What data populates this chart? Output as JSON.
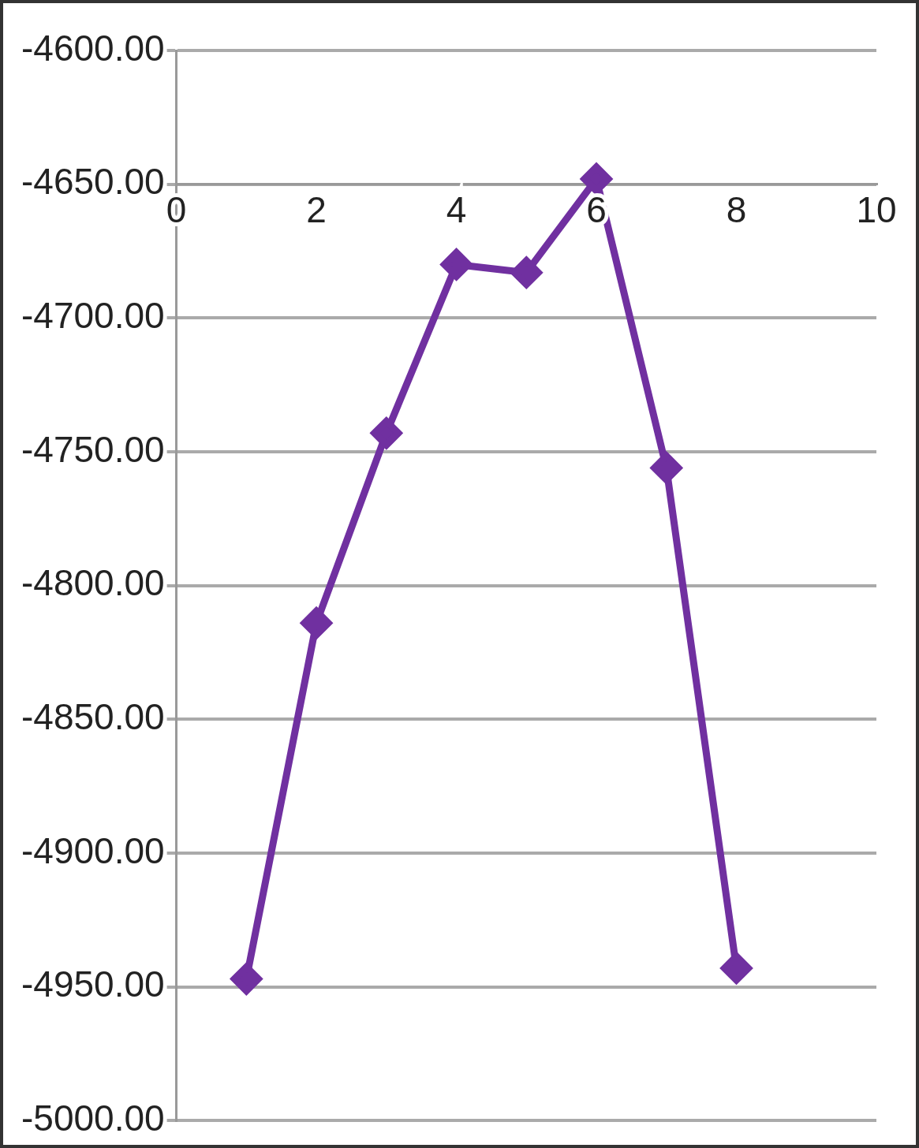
{
  "chart_data": {
    "type": "line",
    "x": [
      1,
      2,
      3,
      4,
      5,
      6,
      7,
      8
    ],
    "series": [
      {
        "color": "#7030a0",
        "values": [
          -4947,
          -4814,
          -4743,
          -4680,
          -4683,
          -4648,
          -4756,
          -4943
        ]
      }
    ],
    "xlim": [
      0,
      10
    ],
    "xticks": [
      0,
      2,
      4,
      6,
      8,
      10
    ],
    "ylim": [
      -5000,
      -4600
    ],
    "yticks": [
      {
        "value": -5000,
        "label": "-5000.00"
      },
      {
        "value": -4950,
        "label": "-4950.00"
      },
      {
        "value": -4900,
        "label": "-4900.00"
      },
      {
        "value": -4850,
        "label": "-4850.00"
      },
      {
        "value": -4800,
        "label": "-4800.00"
      },
      {
        "value": -4750,
        "label": "-4750.00"
      },
      {
        "value": -4700,
        "label": "-4700.00"
      },
      {
        "value": -4650,
        "label": "-4650.00"
      },
      {
        "value": -4600,
        "label": "-4600.00"
      }
    ],
    "grid": "y",
    "marker": "diamond",
    "line_style": "solid"
  }
}
